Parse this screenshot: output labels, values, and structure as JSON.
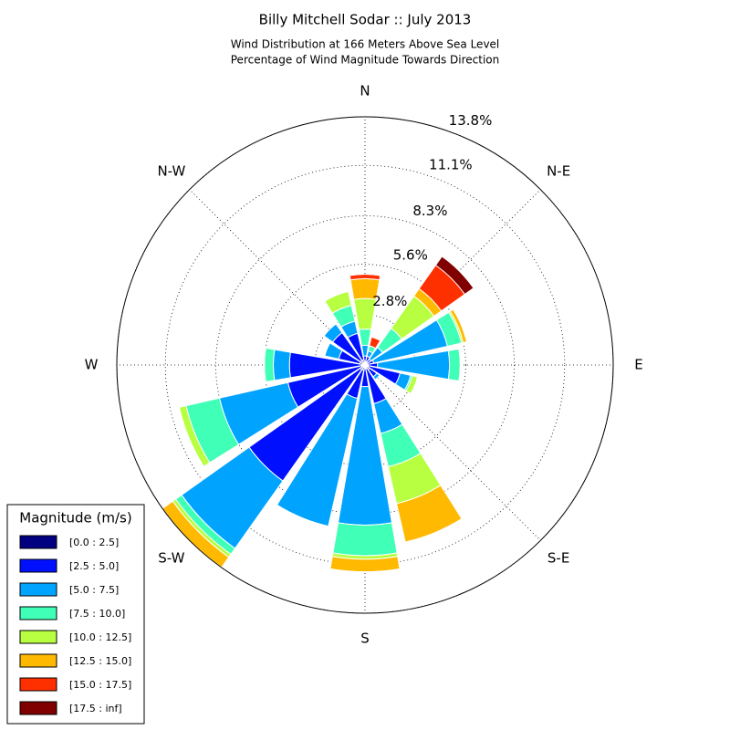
{
  "chart_data": {
    "type": "windrose",
    "title": "Billy Mitchell Sodar :: July 2013",
    "subtitle": [
      "Wind Distribution at 166 Meters Above Sea Level",
      "Percentage of Wind Magnitude Towards Direction"
    ],
    "directions": [
      "N",
      null,
      "N-E",
      null,
      "E",
      null,
      "S-E",
      null,
      "S",
      null,
      "S-W",
      null,
      "W",
      null,
      "N-W",
      null
    ],
    "ylim": [
      0,
      13.8
    ],
    "yticks": [
      {
        "value": 2.8,
        "label": "2.8%"
      },
      {
        "value": 5.6,
        "label": "5.6%"
      },
      {
        "value": 8.3,
        "label": "8.3%"
      },
      {
        "value": 11.1,
        "label": "11.1%"
      },
      {
        "value": 13.8,
        "label": "13.8%"
      }
    ],
    "grid": true,
    "legend_title": "Magnitude (m/s)",
    "legend": "lower left",
    "series": [
      {
        "name": "[0.0 : 2.5]",
        "color": "#000080",
        "values": [
          0.2,
          0.2,
          0.1,
          0.1,
          0.1,
          0.2,
          0.3,
          0.2,
          0.2,
          0.3,
          0.3,
          0.2,
          0.2,
          0.3,
          0.3,
          0.3
        ]
      },
      {
        "name": "[2.5 : 5.0]",
        "color": "#0010ff",
        "values": [
          0.3,
          0.3,
          0.3,
          0.4,
          0.6,
          1.8,
          0.5,
          2.0,
          1.0,
          1.6,
          7.6,
          4.2,
          4.0,
          1.2,
          1.9,
          1.5
        ]
      },
      {
        "name": "[5.0 : 7.5]",
        "color": "#00a4ff",
        "values": [
          0.6,
          0.3,
          0.8,
          4.2,
          4.0,
          0.6,
          0.2,
          1.7,
          7.7,
          7.3,
          4.6,
          3.9,
          0.9,
          0.8,
          0.6,
          0.7
        ]
      },
      {
        "name": "[7.5 : 10.0]",
        "color": "#40ffb7",
        "values": [
          0.9,
          0.3,
          1.3,
          0.8,
          0.6,
          0.1,
          0,
          1.9,
          1.7,
          0,
          0.4,
          1.9,
          0.5,
          0,
          0,
          0.9
        ]
      },
      {
        "name": "[10.0 : 12.5]",
        "color": "#b7ff40",
        "values": [
          1.7,
          0,
          2.2,
          0.1,
          0,
          0.3,
          0,
          2.1,
          0.2,
          0,
          0.2,
          0.4,
          0,
          0,
          0,
          0.8
        ]
      },
      {
        "name": "[12.5 : 15.0]",
        "color": "#ffb900",
        "values": [
          1.1,
          0,
          0.5,
          0.2,
          0,
          0,
          0,
          2.2,
          0.7,
          0,
          0.7,
          0,
          0,
          0,
          0,
          0
        ]
      },
      {
        "name": "[15.0 : 17.5]",
        "color": "#ff3000",
        "values": [
          0.25,
          0.5,
          1.6,
          0,
          0,
          0,
          0,
          0,
          0,
          0,
          0,
          0,
          0,
          0,
          0,
          0
        ]
      },
      {
        "name": "[17.5 : inf]",
        "color": "#800000",
        "values": [
          0,
          0,
          0.6,
          0,
          0,
          0,
          0,
          0,
          0,
          0,
          0,
          0,
          0,
          0,
          0,
          0
        ]
      }
    ]
  }
}
